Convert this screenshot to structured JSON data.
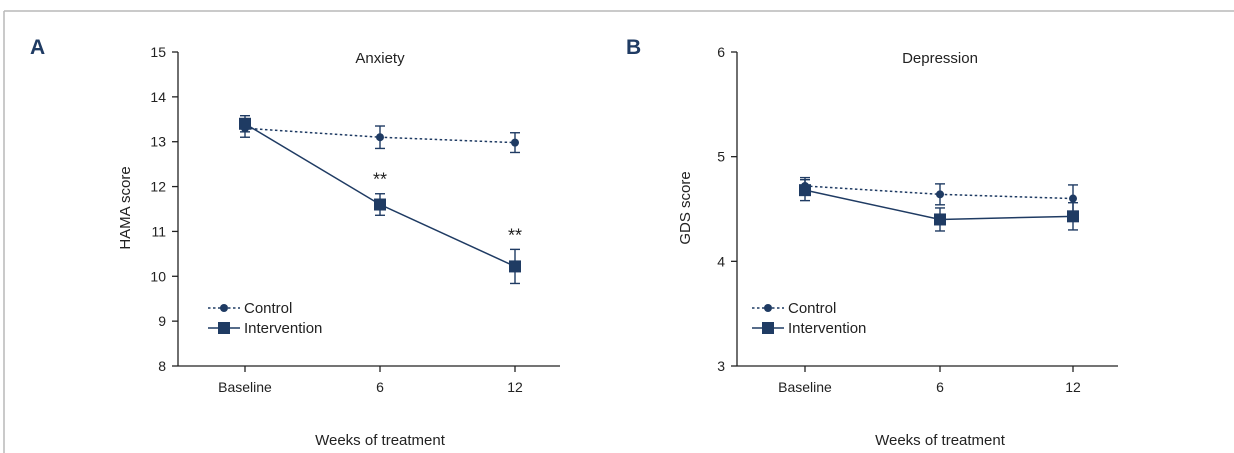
{
  "colors": {
    "series": "#1f3b63",
    "axis": "#222222",
    "border": "#b9b9b9"
  },
  "chart_data": [
    {
      "panel_label": "A",
      "type": "line",
      "title": "Anxiety",
      "xlabel": "Weeks of treatment",
      "ylabel": "HAMA score",
      "categories": [
        "Baseline",
        "6",
        "12"
      ],
      "ylim": [
        8,
        15
      ],
      "yticks": [
        "8",
        "9",
        "10",
        "11",
        "12",
        "13",
        "14",
        "15"
      ],
      "grid": false,
      "legend": "bottom-left",
      "series": [
        {
          "name": "Control",
          "style": "dotted",
          "marker": "circle",
          "values": [
            13.3,
            13.1,
            12.98
          ],
          "errors": [
            0.2,
            0.25,
            0.22
          ]
        },
        {
          "name": "Intervention",
          "style": "solid",
          "marker": "square",
          "values": [
            13.4,
            11.6,
            10.22
          ],
          "errors": [
            0.18,
            0.24,
            0.38
          ]
        }
      ],
      "annotations": [
        {
          "category": "6",
          "text": "**"
        },
        {
          "category": "12",
          "text": "**"
        }
      ]
    },
    {
      "panel_label": "B",
      "type": "line",
      "title": "Depression",
      "xlabel": "Weeks of treatment",
      "ylabel": "GDS score",
      "categories": [
        "Baseline",
        "6",
        "12"
      ],
      "ylim": [
        3,
        6
      ],
      "yticks": [
        "3",
        "4",
        "5",
        "6"
      ],
      "grid": false,
      "legend": "bottom-left",
      "series": [
        {
          "name": "Control",
          "style": "dotted",
          "marker": "circle",
          "values": [
            4.72,
            4.64,
            4.6
          ],
          "errors": [
            0.08,
            0.1,
            0.13
          ]
        },
        {
          "name": "Intervention",
          "style": "solid",
          "marker": "square",
          "values": [
            4.68,
            4.4,
            4.43
          ],
          "errors": [
            0.1,
            0.11,
            0.13
          ]
        }
      ],
      "annotations": []
    }
  ]
}
